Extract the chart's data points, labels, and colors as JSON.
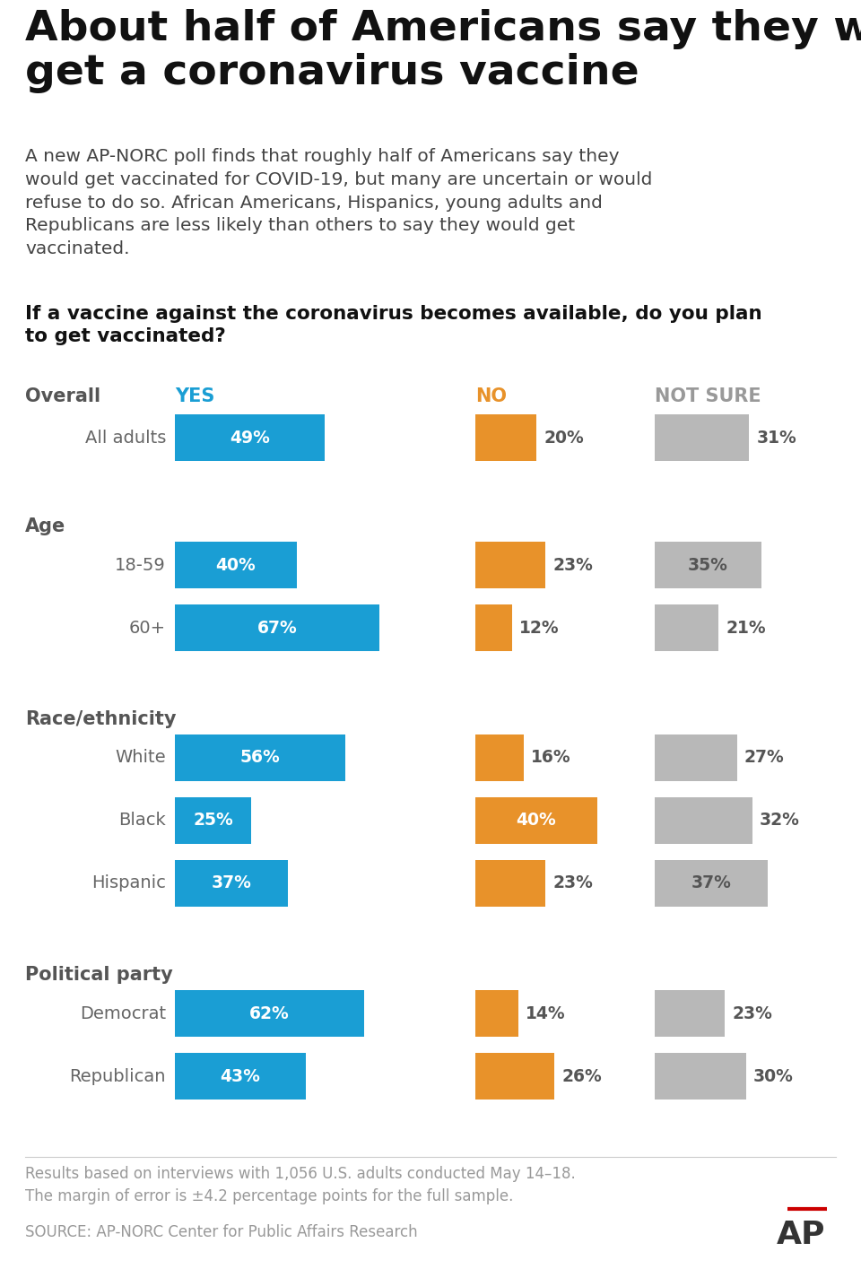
{
  "title": "About half of Americans say they would\nget a coronavirus vaccine",
  "subtitle": "A new AP-NORC poll finds that roughly half of Americans say they would get vaccinated for COVID-19, but many are uncertain or would refuse to do so. African Americans, Hispanics, young adults and Republicans are less likely than others to say they would get vaccinated.",
  "question": "If a vaccine against the coronavirus becomes available, do you plan\nto get vaccinated?",
  "yes_color": "#1a9ed4",
  "no_color": "#e8922a",
  "not_sure_color": "#b8b8b8",
  "yes_label": "YES",
  "no_label": "NO",
  "not_sure_label": "NOT SURE",
  "groups": [
    {
      "section": "Overall",
      "label": "All adults",
      "yes": 49,
      "no": 20,
      "not_sure": 31
    },
    {
      "section": "Age",
      "label": "18-59",
      "yes": 40,
      "no": 23,
      "not_sure": 35
    },
    {
      "section": null,
      "label": "60+",
      "yes": 67,
      "no": 12,
      "not_sure": 21
    },
    {
      "section": "Race/ethnicity",
      "label": "White",
      "yes": 56,
      "no": 16,
      "not_sure": 27
    },
    {
      "section": null,
      "label": "Black",
      "yes": 25,
      "no": 40,
      "not_sure": 32
    },
    {
      "section": null,
      "label": "Hispanic",
      "yes": 37,
      "no": 23,
      "not_sure": 37
    },
    {
      "section": "Political party",
      "label": "Democrat",
      "yes": 62,
      "no": 14,
      "not_sure": 23
    },
    {
      "section": null,
      "label": "Republican",
      "yes": 43,
      "no": 26,
      "not_sure": 30
    }
  ],
  "footnote": "Results based on interviews with 1,056 U.S. adults conducted May 14–18.\nThe margin of error is ±4.2 percentage points for the full sample.",
  "source": "SOURCE: AP-NORC Center for Public Affairs Research",
  "bg_color": "#ffffff"
}
